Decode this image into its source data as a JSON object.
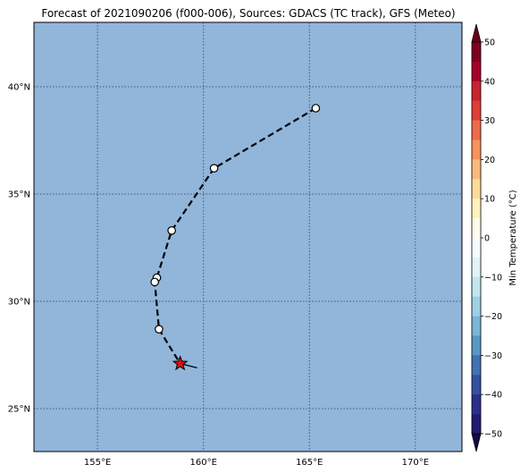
{
  "title": "Forecast of 2021090206 (f000-006), Sources: GDACS (TC track), GFS (Meteo)",
  "colors": {
    "ocean": "#92b5da",
    "grid": "#2a3f6e",
    "track": "#000000",
    "marker_fill": "#ffffff",
    "star_fill": "#dd1111"
  },
  "map": {
    "lon_range": [
      152,
      172.2
    ],
    "lat_range": [
      23,
      43
    ],
    "lon_ticks": [
      {
        "value": 155,
        "label": "155°E"
      },
      {
        "value": 160,
        "label": "160°E"
      },
      {
        "value": 165,
        "label": "165°E"
      },
      {
        "value": 170,
        "label": "170°E"
      }
    ],
    "lat_ticks": [
      {
        "value": 25,
        "label": "25°N"
      },
      {
        "value": 30,
        "label": "30°N"
      },
      {
        "value": 35,
        "label": "35°N"
      },
      {
        "value": 40,
        "label": "40°N"
      }
    ],
    "grid": "dotted"
  },
  "track": {
    "points": [
      {
        "lon": 165.3,
        "lat": 39.0
      },
      {
        "lon": 160.5,
        "lat": 36.2
      },
      {
        "lon": 158.5,
        "lat": 33.3
      },
      {
        "lon": 157.8,
        "lat": 31.1
      },
      {
        "lon": 157.7,
        "lat": 30.9
      },
      {
        "lon": 157.9,
        "lat": 28.7
      },
      {
        "lon": 158.9,
        "lat": 27.1
      }
    ],
    "current_position": {
      "lon": 158.9,
      "lat": 27.1,
      "marker": "star"
    },
    "tail": [
      {
        "lon": 158.9,
        "lat": 27.1
      },
      {
        "lon": 159.7,
        "lat": 26.9
      }
    ]
  },
  "colorbar": {
    "label": "Min Temperature (°C)",
    "min": -50,
    "max": 50,
    "ticks": [
      {
        "value": 50,
        "label": "50"
      },
      {
        "value": 40,
        "label": "40"
      },
      {
        "value": 30,
        "label": "30"
      },
      {
        "value": 20,
        "label": "20"
      },
      {
        "value": 10,
        "label": "10"
      },
      {
        "value": 0,
        "label": "0"
      },
      {
        "value": -10,
        "label": "−10"
      },
      {
        "value": -20,
        "label": "−20"
      },
      {
        "value": -30,
        "label": "−30"
      },
      {
        "value": -40,
        "label": "−40"
      },
      {
        "value": -50,
        "label": "−50"
      }
    ],
    "bands": [
      {
        "from": 45,
        "to": 50,
        "color": "#7f0020"
      },
      {
        "from": 40,
        "to": 45,
        "color": "#a5002a"
      },
      {
        "from": 35,
        "to": 40,
        "color": "#c8242f"
      },
      {
        "from": 30,
        "to": 35,
        "color": "#de3f34"
      },
      {
        "from": 25,
        "to": 30,
        "color": "#ee6a4c"
      },
      {
        "from": 20,
        "to": 25,
        "color": "#f7935e"
      },
      {
        "from": 15,
        "to": 20,
        "color": "#fbb97b"
      },
      {
        "from": 10,
        "to": 15,
        "color": "#fedb98"
      },
      {
        "from": 5,
        "to": 10,
        "color": "#fff2be"
      },
      {
        "from": 0,
        "to": 5,
        "color": "#fffbea"
      },
      {
        "from": -5,
        "to": 0,
        "color": "#f6fcfe"
      },
      {
        "from": -10,
        "to": -5,
        "color": "#e1f3f8"
      },
      {
        "from": -15,
        "to": -10,
        "color": "#c3e5ef"
      },
      {
        "from": -20,
        "to": -15,
        "color": "#9fd0e4"
      },
      {
        "from": -25,
        "to": -20,
        "color": "#79b6d7"
      },
      {
        "from": -30,
        "to": -25,
        "color": "#5897c5"
      },
      {
        "from": -35,
        "to": -30,
        "color": "#4272b2"
      },
      {
        "from": -40,
        "to": -35,
        "color": "#35509f"
      },
      {
        "from": -45,
        "to": -40,
        "color": "#2b2f8c"
      },
      {
        "from": -50,
        "to": -45,
        "color": "#221a72"
      }
    ],
    "extend_top_color": "#6a0018",
    "extend_bottom_color": "#13094a"
  }
}
